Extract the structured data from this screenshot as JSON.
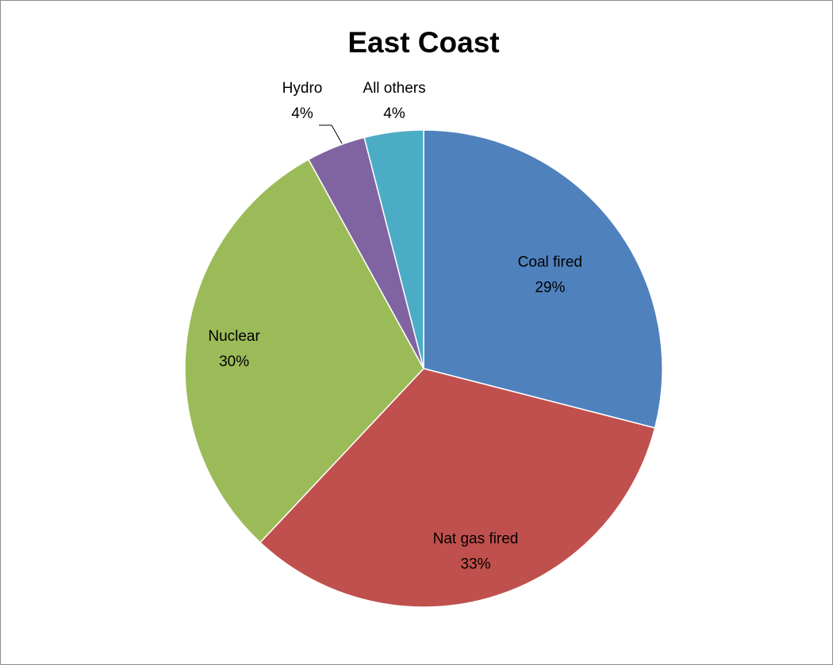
{
  "chart_data": {
    "type": "pie",
    "title": "East Coast",
    "slices": [
      {
        "name": "Coal fired",
        "value": 29,
        "label": "29%",
        "color": "#4f81bd"
      },
      {
        "name": "Nat gas fired",
        "value": 33,
        "label": "33%",
        "color": "#c0504d"
      },
      {
        "name": "Nuclear",
        "value": 30,
        "label": "30%",
        "color": "#9bbb59"
      },
      {
        "name": "Hydro",
        "value": 4,
        "label": "4%",
        "color": "#8064a2"
      },
      {
        "name": "All others",
        "value": 4,
        "label": "4%",
        "color": "#4bacc6"
      }
    ],
    "start": "12 o'clock",
    "direction": "clockwise",
    "legend": "none"
  }
}
